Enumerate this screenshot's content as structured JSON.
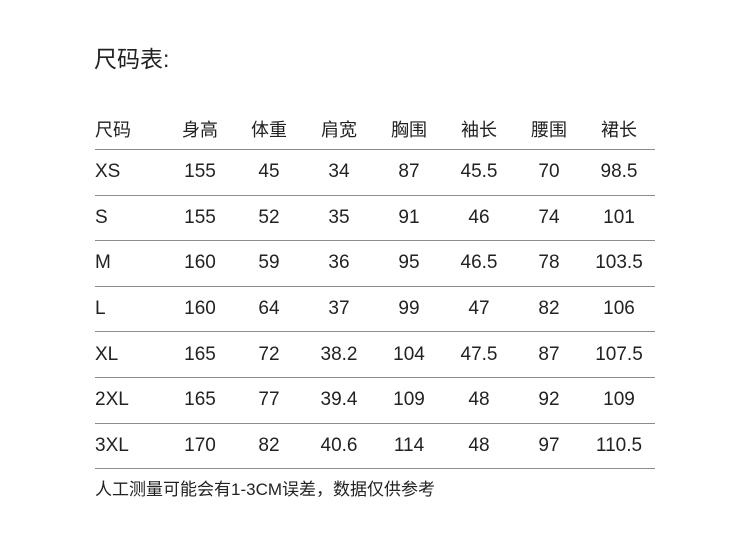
{
  "title": "尺码表:",
  "table": {
    "headers": [
      "尺码",
      "身高",
      "体重",
      "肩宽",
      "胸围",
      "袖长",
      "腰围",
      "裙长"
    ],
    "rows": [
      [
        "XS",
        "155",
        "45",
        "34",
        "87",
        "45.5",
        "70",
        "98.5"
      ],
      [
        "S",
        "155",
        "52",
        "35",
        "91",
        "46",
        "74",
        "101"
      ],
      [
        "M",
        "160",
        "59",
        "36",
        "95",
        "46.5",
        "78",
        "103.5"
      ],
      [
        "L",
        "160",
        "64",
        "37",
        "99",
        "47",
        "82",
        "106"
      ],
      [
        "XL",
        "165",
        "72",
        "38.2",
        "104",
        "47.5",
        "87",
        "107.5"
      ],
      [
        "2XL",
        "165",
        "77",
        "39.4",
        "109",
        "48",
        "92",
        "109"
      ],
      [
        "3XL",
        "170",
        "82",
        "40.6",
        "114",
        "48",
        "97",
        "110.5"
      ]
    ]
  },
  "note": "人工测量可能会有1-3CM误差，数据仅供参考"
}
